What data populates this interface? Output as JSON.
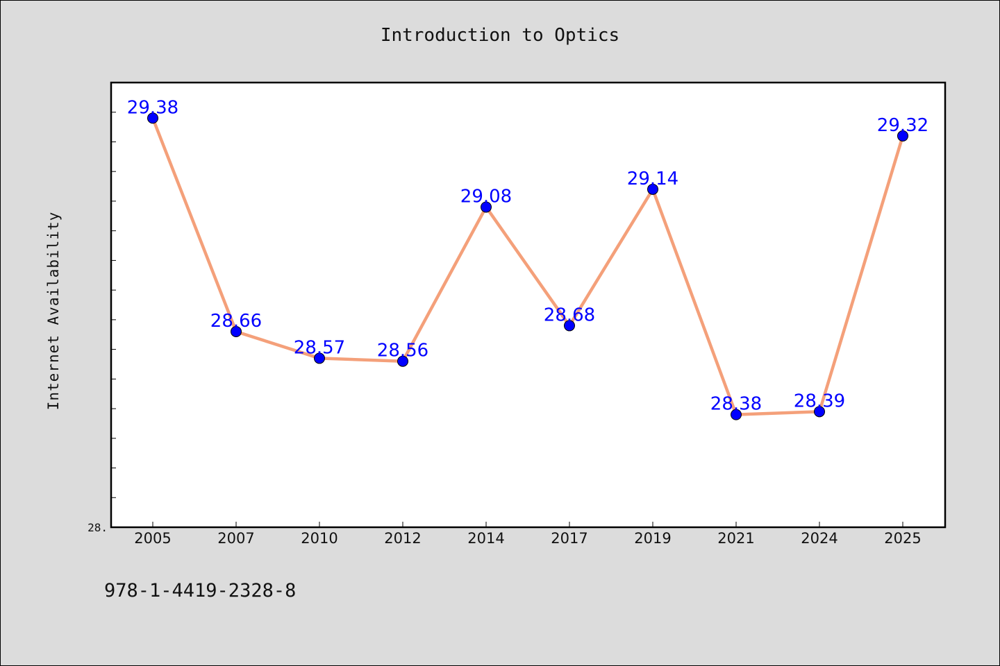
{
  "chart_data": {
    "type": "line",
    "title": "Introduction to Optics",
    "xlabel": "",
    "ylabel": "Internet Availability",
    "categories": [
      "2005",
      "2007",
      "2010",
      "2012",
      "2014",
      "2017",
      "2019",
      "2021",
      "2024",
      "2025"
    ],
    "series": [
      {
        "values": [
          29.38,
          28.66,
          28.57,
          28.56,
          29.08,
          28.68,
          29.14,
          28.38,
          28.39,
          29.32
        ]
      }
    ],
    "data_labels": [
      "29.38",
      "28.66",
      "28.57",
      "28.56",
      "29.08",
      "28.68",
      "29.14",
      "28.38",
      "28.39",
      "29.32"
    ],
    "ylim": [
      28.0,
      29.5
    ],
    "y_minor_tick_step": 0.1,
    "y_tick_labels": [
      "28."
    ],
    "grid": false,
    "line_color": "#f4a07a",
    "marker_color": "#0000ff",
    "label_color": "#0000ff",
    "background": "#dcdcdc",
    "plot_background": "#ffffff"
  },
  "footer": {
    "isbn": "978-1-4419-2328-8"
  }
}
